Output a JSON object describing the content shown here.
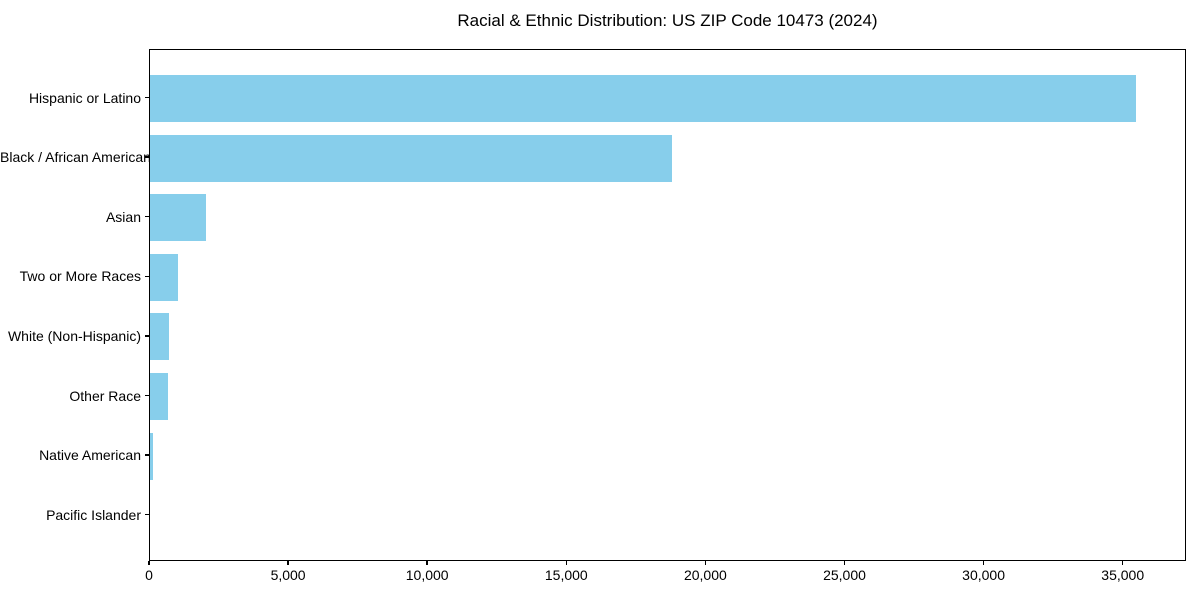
{
  "chart_data": {
    "type": "bar",
    "orientation": "horizontal",
    "title": "Racial & Ethnic Distribution: US ZIP Code 10473 (2024)",
    "categories": [
      "Hispanic or Latino",
      "Black / African American",
      "Asian",
      "Two or More Races",
      "White (Non-Hispanic)",
      "Other Race",
      "Native American",
      "Pacific Islander"
    ],
    "values": [
      35500,
      18800,
      2000,
      1000,
      700,
      650,
      120,
      0
    ],
    "x_ticks": [
      0,
      5000,
      10000,
      15000,
      20000,
      25000,
      30000,
      35000
    ],
    "x_tick_labels": [
      "0",
      "5,000",
      "10,000",
      "15,000",
      "20,000",
      "25,000",
      "30,000",
      "35,000"
    ],
    "xlim": [
      0,
      37275
    ],
    "xlabel": "",
    "ylabel": "",
    "bar_color": "#87CEEB",
    "axis_color": "#000000",
    "background_color": "#ffffff",
    "grid": false,
    "legend": null
  }
}
